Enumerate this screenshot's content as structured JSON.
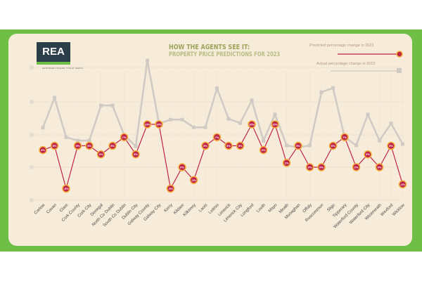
{
  "header": {
    "logo": "REA",
    "logo_subtitle": "AVERAGE HOUSE PRICE INDEX",
    "title_line1": "HOW THE AGENTS SEE IT:",
    "title_line2": "PROPERTY PRICE PREDICTIONS FOR 2023"
  },
  "colors": {
    "green": "#6fbe45",
    "predicted": "#c0244a",
    "actual": "#cfcac4",
    "marker_ring": "#f2b23a"
  },
  "chart_data": {
    "type": "line",
    "title": "How the agents see it: Property price predictions for 2023",
    "xlabel": "",
    "ylabel": "",
    "categories": [
      "Carlow",
      "Cavan",
      "Clare",
      "Cork County",
      "Cork City",
      "Donegal",
      "North Co Dublin",
      "South Co Dublin",
      "Dublin City",
      "Galway County",
      "Galway City",
      "Kerry",
      "Kildare",
      "Kilkenny",
      "Laois",
      "Leitrim",
      "Limerick",
      "Limerick City",
      "Longford",
      "Louth",
      "Mayo",
      "Meath",
      "Monaghan",
      "Offaly",
      "Roscommon",
      "Sligo",
      "Tipperary",
      "Waterford County",
      "Waterford City",
      "Westmeath",
      "Wexford",
      "Wicklow"
    ],
    "series": [
      {
        "name": "Predicted percentage change in 2023",
        "values": [
          4,
          5,
          -5,
          5,
          5,
          3,
          5,
          7,
          3,
          10,
          10,
          -5,
          0,
          -3,
          5,
          7,
          5,
          5,
          10,
          4,
          10,
          1,
          5,
          0,
          0,
          5,
          7,
          0,
          3,
          0,
          5,
          -4
        ]
      },
      {
        "name": "Actual percentage change in 2022",
        "values": [
          9.2,
          16.2,
          7,
          6.2,
          6.2,
          14.4,
          14.4,
          7.5,
          4.9,
          24.9,
          10.2,
          11.1,
          11.1,
          9.3,
          9.3,
          18.4,
          11.3,
          10.3,
          15.6,
          6.2,
          12.3,
          5.1,
          4.6,
          5.1,
          17.5,
          18.5,
          7,
          5.1,
          12.3,
          6.2,
          10.2,
          5.4
        ]
      }
    ],
    "ylim": [
      -8,
      24
    ],
    "grid": true,
    "legend": "top-right"
  }
}
